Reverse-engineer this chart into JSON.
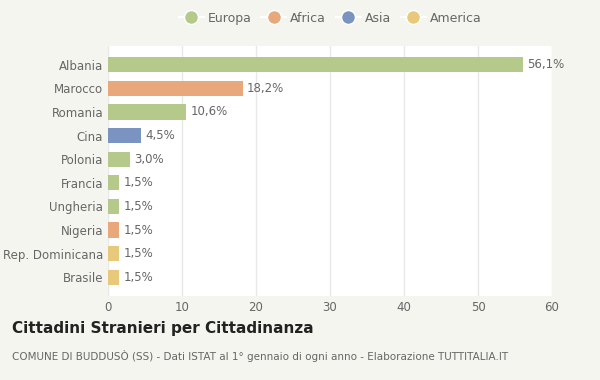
{
  "categories": [
    "Albania",
    "Marocco",
    "Romania",
    "Cina",
    "Polonia",
    "Francia",
    "Ungheria",
    "Nigeria",
    "Rep. Dominicana",
    "Brasile"
  ],
  "values": [
    56.1,
    18.2,
    10.6,
    4.5,
    3.0,
    1.5,
    1.5,
    1.5,
    1.5,
    1.5
  ],
  "labels": [
    "56,1%",
    "18,2%",
    "10,6%",
    "4,5%",
    "3,0%",
    "1,5%",
    "1,5%",
    "1,5%",
    "1,5%",
    "1,5%"
  ],
  "colors": [
    "#b5c98a",
    "#e8a87c",
    "#b5c98a",
    "#7b93c0",
    "#b5c98a",
    "#b5c98a",
    "#b5c98a",
    "#e8a87c",
    "#e8c87a",
    "#e8c87a"
  ],
  "legend_labels": [
    "Europa",
    "Africa",
    "Asia",
    "America"
  ],
  "legend_colors": [
    "#b5c98a",
    "#e8a87c",
    "#7b93c0",
    "#e8c87a"
  ],
  "title": "Cittadini Stranieri per Cittadinanza",
  "subtitle": "COMUNE DI BUDDUSÒ (SS) - Dati ISTAT al 1° gennaio di ogni anno - Elaborazione TUTTITALIA.IT",
  "xlim": [
    0,
    60
  ],
  "xticks": [
    0,
    10,
    20,
    30,
    40,
    50,
    60
  ],
  "plot_bg": "#ffffff",
  "fig_bg": "#f5f5f0",
  "grid_color": "#e8e8e8",
  "text_color": "#666666",
  "title_color": "#222222",
  "title_fontsize": 11,
  "subtitle_fontsize": 7.5,
  "label_fontsize": 8.5,
  "tick_fontsize": 8.5,
  "legend_fontsize": 9
}
